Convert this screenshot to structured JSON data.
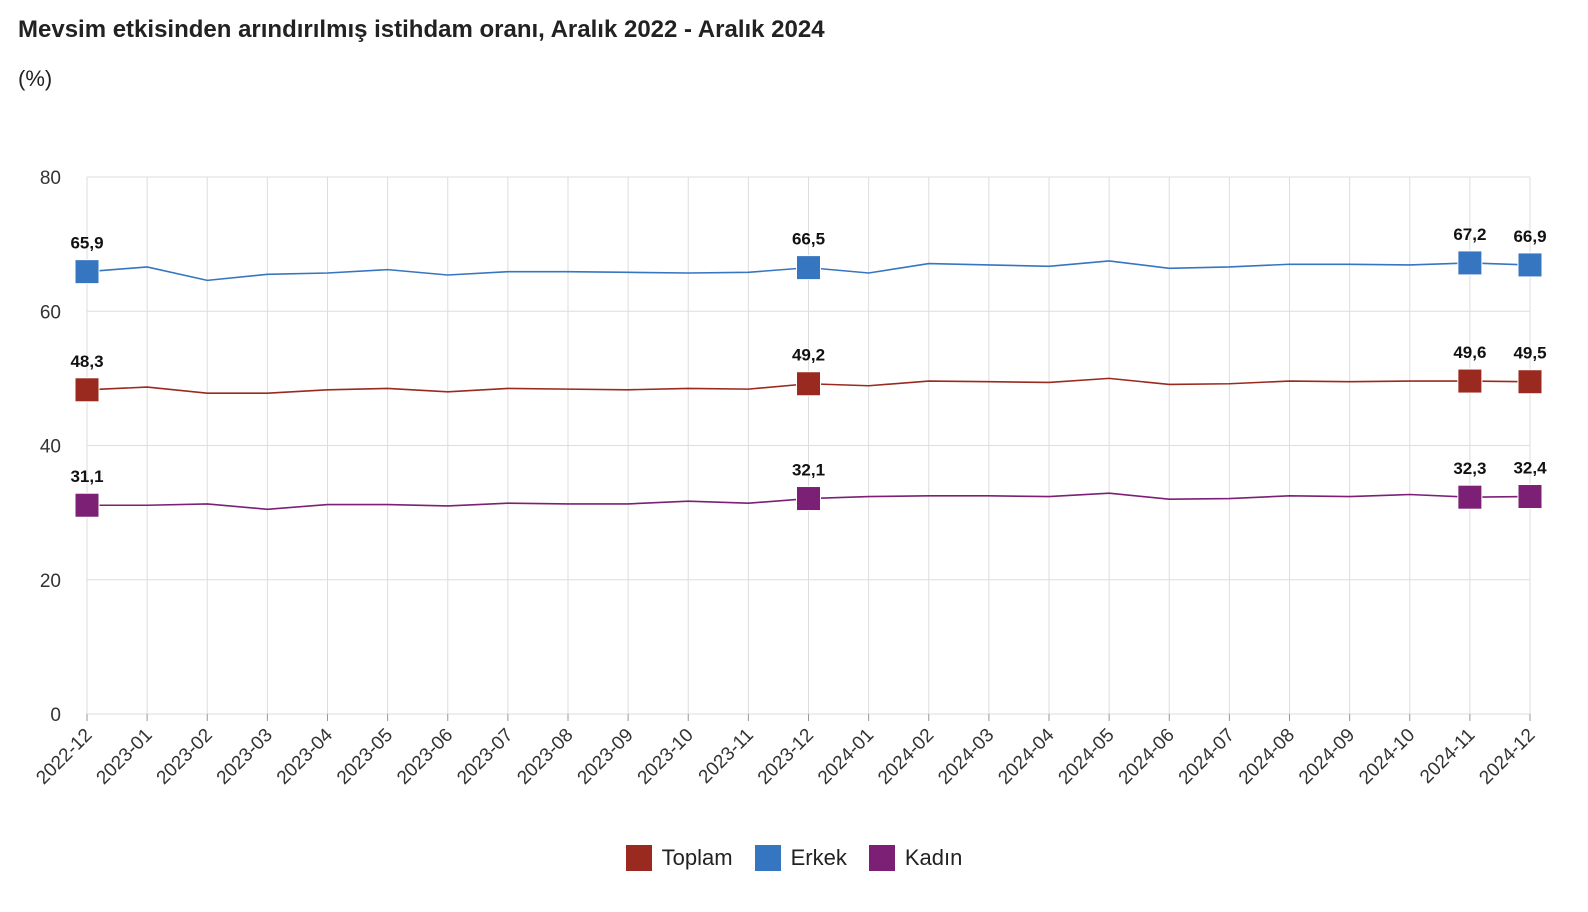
{
  "chart_data": {
    "type": "line",
    "title": "Mevsim etkisinden arındırılmış istihdam oranı, Aralık 2022 - Aralık 2024",
    "subtitle": "(%)",
    "xlabel": "",
    "ylabel": "",
    "ylim": [
      0,
      80
    ],
    "yticks": [
      "0",
      "20",
      "40",
      "60",
      "80"
    ],
    "grid": true,
    "legend_position": "bottom",
    "x": [
      "2022-12",
      "2023-01",
      "2023-02",
      "2023-03",
      "2023-04",
      "2023-05",
      "2023-06",
      "2023-07",
      "2023-08",
      "2023-09",
      "2023-10",
      "2023-11",
      "2023-12",
      "2024-01",
      "2024-02",
      "2024-03",
      "2024-04",
      "2024-05",
      "2024-06",
      "2024-07",
      "2024-08",
      "2024-09",
      "2024-10",
      "2024-11",
      "2024-12"
    ],
    "series": [
      {
        "name": "Toplam",
        "color": "#9a2a1f",
        "values": [
          48.3,
          48.7,
          47.8,
          47.8,
          48.3,
          48.5,
          48.0,
          48.5,
          48.4,
          48.3,
          48.5,
          48.4,
          49.2,
          48.9,
          49.6,
          49.5,
          49.4,
          50.0,
          49.1,
          49.2,
          49.6,
          49.5,
          49.6,
          49.6,
          49.5
        ],
        "labels": [
          "48,3",
          "",
          "",
          "",
          "",
          "",
          "",
          "",
          "",
          "",
          "",
          "",
          "49,2",
          "",
          "",
          "",
          "",
          "",
          "",
          "",
          "",
          "",
          "",
          "49,6",
          "49,5"
        ]
      },
      {
        "name": "Erkek",
        "color": "#3675c0",
        "values": [
          65.9,
          66.6,
          64.6,
          65.5,
          65.7,
          66.2,
          65.4,
          65.9,
          65.9,
          65.8,
          65.7,
          65.8,
          66.5,
          65.7,
          67.1,
          66.9,
          66.7,
          67.5,
          66.4,
          66.6,
          67.0,
          67.0,
          66.9,
          67.2,
          66.9
        ],
        "labels": [
          "65,9",
          "",
          "",
          "",
          "",
          "",
          "",
          "",
          "",
          "",
          "",
          "",
          "66,5",
          "",
          "",
          "",
          "",
          "",
          "",
          "",
          "",
          "",
          "",
          "67,2",
          "66,9"
        ]
      },
      {
        "name": "Kadın",
        "color": "#7b2075",
        "values": [
          31.1,
          31.1,
          31.3,
          30.5,
          31.2,
          31.2,
          31.0,
          31.4,
          31.3,
          31.3,
          31.7,
          31.4,
          32.1,
          32.4,
          32.5,
          32.5,
          32.4,
          32.9,
          32.0,
          32.1,
          32.5,
          32.4,
          32.7,
          32.3,
          32.4
        ],
        "labels": [
          "31,1",
          "",
          "",
          "",
          "",
          "",
          "",
          "",
          "",
          "",
          "",
          "",
          "32,1",
          "",
          "",
          "",
          "",
          "",
          "",
          "",
          "",
          "",
          "",
          "32,3",
          "32,4"
        ]
      }
    ]
  }
}
